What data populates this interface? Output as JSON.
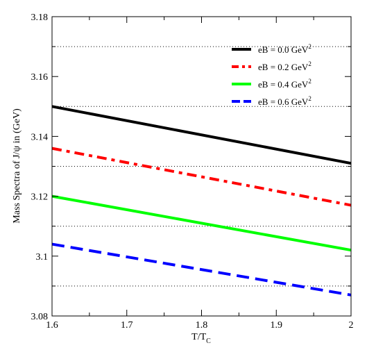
{
  "chart_data": {
    "type": "line",
    "xlabel": "T/T",
    "xlabel_sub": "C",
    "ylabel": "Mass Spectra of J/ψ in (GeV)",
    "xlim": [
      1.6,
      2.0
    ],
    "ylim": [
      3.08,
      3.18
    ],
    "x_ticks": [
      "1.6",
      "1.7",
      "1.8",
      "1.9",
      "2"
    ],
    "y_ticks": [
      "3.08",
      "3.1",
      "3.12",
      "3.14",
      "3.16",
      "3.18"
    ],
    "grid": "horizontal dotted at minor y ticks",
    "legend_position": "top-right",
    "series": [
      {
        "name": "eB = 0.0 GeV",
        "sup": "2",
        "color": "#000000",
        "style": "solid",
        "x": [
          1.6,
          2.0
        ],
        "y": [
          3.15,
          3.131
        ]
      },
      {
        "name": "eB = 0.2 GeV",
        "sup": "2",
        "color": "#ff0000",
        "style": "dashdot",
        "x": [
          1.6,
          2.0
        ],
        "y": [
          3.136,
          3.117
        ]
      },
      {
        "name": "eB = 0.4 GeV",
        "sup": "2",
        "color": "#00ff00",
        "style": "solid",
        "x": [
          1.6,
          2.0
        ],
        "y": [
          3.12,
          3.102
        ]
      },
      {
        "name": "eB = 0.6 GeV",
        "sup": "2",
        "color": "#0000ff",
        "style": "dashed",
        "x": [
          1.6,
          2.0
        ],
        "y": [
          3.104,
          3.087
        ]
      }
    ]
  }
}
